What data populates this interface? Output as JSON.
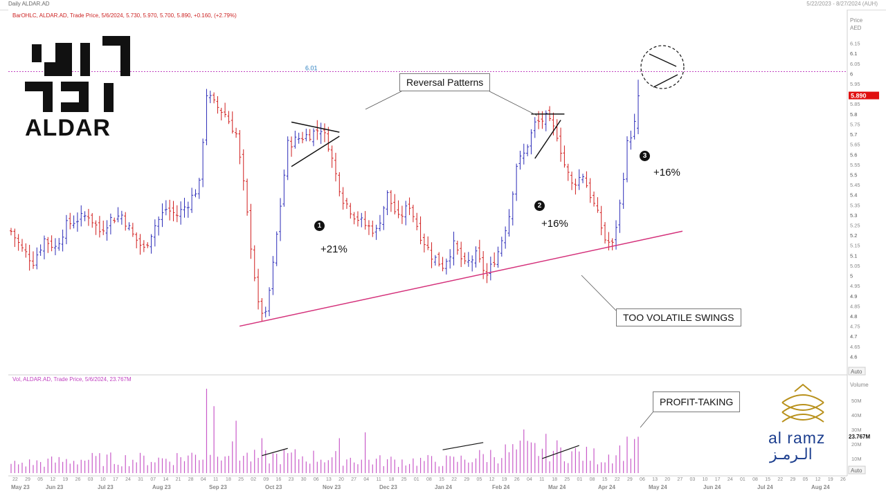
{
  "header": {
    "left": "Daily ALDAR.AD",
    "right": "5/22/2023 - 8/27/2024 (AUH)"
  },
  "legend": {
    "price_line": "BarOHLC, ALDAR.AD, Trade Price, 5/6/2024, 5.730, 5.970, 5.700, 5.890, +0.160, (+2.79%)",
    "vol_line": "Vol, ALDAR.AD, Trade Price, 5/6/2024, 23.767M"
  },
  "price_axis": {
    "title": "Price",
    "unit": "AED",
    "labels": [
      "6.15",
      "6.1",
      "6.05",
      "6",
      "5.95",
      "5.9",
      "5.85",
      "5.8",
      "5.75",
      "5.7",
      "5.65",
      "5.6",
      "5.55",
      "5.5",
      "5.45",
      "5.4",
      "5.35",
      "5.3",
      "5.25",
      "5.2",
      "5.15",
      "5.1",
      "5.05",
      "5",
      "4.95",
      "4.9",
      "4.85",
      "4.8",
      "4.75",
      "4.7",
      "4.65",
      "4.6"
    ],
    "auto": "Auto",
    "current": "5.890"
  },
  "vol_axis": {
    "title": "Volume",
    "labels": [
      "50M",
      "40M",
      "30M",
      "20M",
      "10M"
    ],
    "current": "23.767M",
    "auto": "Auto"
  },
  "annotations": {
    "ref_line_label": "6.01",
    "reversal": "Reversal Patterns",
    "volatile": "TOO VOLATILE SWINGS",
    "profit": "PROFIT-TAKING",
    "gain1": "+21%",
    "gain2": "+16%",
    "gain3": "+16%",
    "num1": "1",
    "num2": "2",
    "num3": "3"
  },
  "logos": {
    "aldar": "ALDAR",
    "alramz_en": "al ramz",
    "alramz_ar": "الـرمـز"
  },
  "colors": {
    "up": "#2b2bb8",
    "down": "#d01c1c",
    "vol": "#c85ac8",
    "trend": "#d4307a",
    "ref": "#c040c0"
  },
  "chart_data": {
    "type": "bar",
    "title": "Daily ALDAR.AD",
    "ylim": [
      4.55,
      6.2
    ],
    "vol_ylim": [
      0,
      58
    ],
    "ref_level": 6.01,
    "x_day_labels": [
      "22",
      "29",
      "05",
      "12",
      "19",
      "26",
      "03",
      "10",
      "17",
      "24",
      "31",
      "07",
      "14",
      "21",
      "28",
      "04",
      "11",
      "18",
      "25",
      "02",
      "09",
      "16",
      "23",
      "30",
      "06",
      "13",
      "20",
      "27",
      "04",
      "11",
      "18",
      "25",
      "01",
      "08",
      "15",
      "22",
      "29",
      "05",
      "12",
      "19",
      "26",
      "04",
      "11",
      "18",
      "25",
      "01",
      "08",
      "15",
      "22",
      "29",
      "06",
      "13",
      "20",
      "27",
      "03",
      "10",
      "17",
      "24",
      "01",
      "08",
      "15",
      "22",
      "29",
      "05",
      "12",
      "19",
      "26"
    ],
    "x_month_labels": [
      "May 23",
      "Jun 23",
      "Jul 23",
      "Aug 23",
      "Sep 23",
      "Oct 23",
      "Nov 23",
      "Dec 23",
      "Jan 24",
      "Feb 24",
      "Mar 24",
      "Apr 24",
      "May 24",
      "Jun 24",
      "Jul 24",
      "Aug 24"
    ],
    "close_anchors": [
      [
        0,
        5.22
      ],
      [
        3,
        5.13
      ],
      [
        6,
        5.07
      ],
      [
        9,
        5.18
      ],
      [
        12,
        5.14
      ],
      [
        15,
        5.25
      ],
      [
        18,
        5.28
      ],
      [
        21,
        5.3
      ],
      [
        24,
        5.22
      ],
      [
        27,
        5.28
      ],
      [
        30,
        5.3
      ],
      [
        33,
        5.2
      ],
      [
        36,
        5.13
      ],
      [
        39,
        5.25
      ],
      [
        42,
        5.33
      ],
      [
        45,
        5.3
      ],
      [
        48,
        5.36
      ],
      [
        51,
        5.45
      ],
      [
        53,
        5.9
      ],
      [
        55,
        5.85
      ],
      [
        58,
        5.8
      ],
      [
        61,
        5.7
      ],
      [
        63,
        5.45
      ],
      [
        65,
        5.15
      ],
      [
        67,
        4.85
      ],
      [
        69,
        4.8
      ],
      [
        71,
        5.05
      ],
      [
        73,
        5.35
      ],
      [
        75,
        5.65
      ],
      [
        78,
        5.68
      ],
      [
        81,
        5.7
      ],
      [
        84,
        5.73
      ],
      [
        86,
        5.65
      ],
      [
        88,
        5.5
      ],
      [
        90,
        5.38
      ],
      [
        93,
        5.3
      ],
      [
        96,
        5.25
      ],
      [
        99,
        5.22
      ],
      [
        102,
        5.4
      ],
      [
        105,
        5.28
      ],
      [
        108,
        5.35
      ],
      [
        111,
        5.2
      ],
      [
        114,
        5.1
      ],
      [
        117,
        5.05
      ],
      [
        120,
        5.15
      ],
      [
        123,
        5.05
      ],
      [
        126,
        5.1
      ],
      [
        129,
        5.0
      ],
      [
        132,
        5.12
      ],
      [
        135,
        5.3
      ],
      [
        137,
        5.55
      ],
      [
        139,
        5.6
      ],
      [
        142,
        5.75
      ],
      [
        145,
        5.78
      ],
      [
        148,
        5.7
      ],
      [
        150,
        5.55
      ],
      [
        152,
        5.45
      ],
      [
        155,
        5.5
      ],
      [
        157,
        5.4
      ],
      [
        159,
        5.3
      ],
      [
        161,
        5.18
      ],
      [
        163,
        5.15
      ],
      [
        165,
        5.35
      ],
      [
        167,
        5.65
      ],
      [
        169,
        5.75
      ],
      [
        170,
        5.89
      ]
    ],
    "volume_anchors": [
      [
        0,
        6
      ],
      [
        8,
        7
      ],
      [
        20,
        9
      ],
      [
        40,
        9
      ],
      [
        52,
        12
      ],
      [
        55,
        18
      ],
      [
        65,
        10
      ],
      [
        75,
        11
      ],
      [
        90,
        10
      ],
      [
        100,
        8
      ],
      [
        120,
        8
      ],
      [
        135,
        14
      ],
      [
        145,
        16
      ],
      [
        160,
        10
      ],
      [
        170,
        20
      ]
    ],
    "trendline": [
      [
        67,
        4.75
      ],
      [
        182,
        5.22
      ]
    ],
    "triangle1": [
      [
        76,
        5.76
      ],
      [
        89,
        5.71
      ],
      [
        76,
        5.54
      ],
      [
        89,
        5.69
      ]
    ],
    "triangle2": [
      [
        141,
        5.8
      ],
      [
        150,
        5.8
      ],
      [
        142,
        5.58
      ],
      [
        149,
        5.77
      ]
    ],
    "volume_lines": [
      [
        68,
        12
      ],
      [
        75,
        17
      ],
      [
        117,
        16
      ],
      [
        128,
        21
      ],
      [
        144,
        10
      ],
      [
        154,
        19
      ]
    ]
  }
}
